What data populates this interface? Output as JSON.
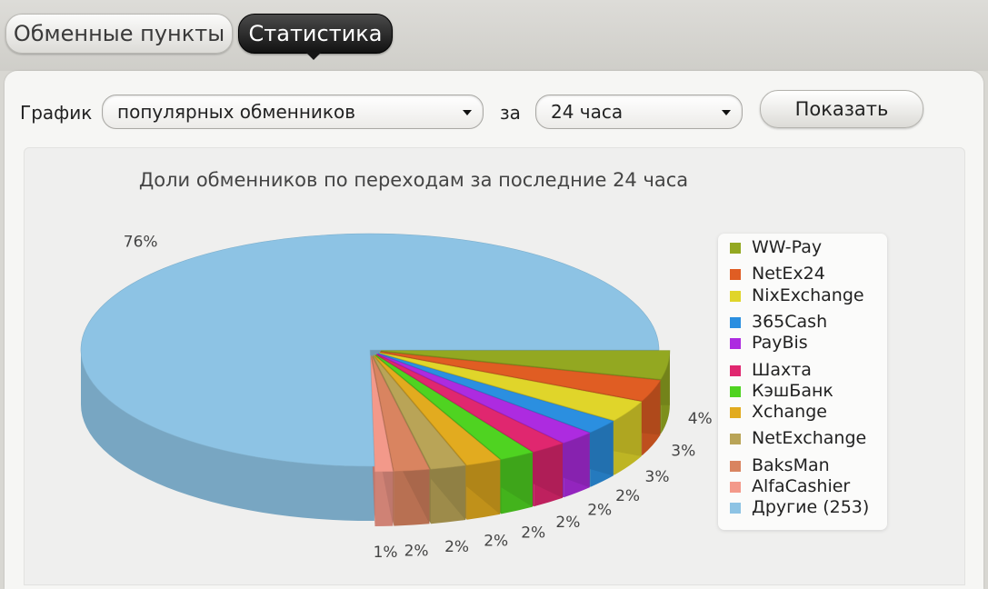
{
  "tabs": [
    {
      "label": "Обменные пункты",
      "active": false
    },
    {
      "label": "Статистика",
      "active": true
    }
  ],
  "controls": {
    "graph_label": "График",
    "graph_select_value": "популярных обменников",
    "period_label": "за",
    "period_select_value": "24 часа",
    "show_button": "Показать"
  },
  "chart_data": {
    "type": "pie",
    "title": "Доли обменников по переходам за последние 24 часа",
    "legend_position": "right",
    "slices": [
      {
        "name": "WW-Pay",
        "value": 4,
        "label": "4%",
        "color": "#93a821"
      },
      {
        "name": "NetEx24",
        "value": 3,
        "label": "3%",
        "color": "#e05d23"
      },
      {
        "name": "NixExchange",
        "value": 3,
        "label": "3%",
        "color": "#e0d52a"
      },
      {
        "name": "365Cash",
        "value": 2,
        "label": "2%",
        "color": "#2b8fe0"
      },
      {
        "name": "PayBis",
        "value": 2,
        "label": "2%",
        "color": "#ad2be0"
      },
      {
        "name": "Шахта",
        "value": 2,
        "label": "2%",
        "color": "#e0276f"
      },
      {
        "name": "КэшБанк",
        "value": 2,
        "label": "2%",
        "color": "#4fd321"
      },
      {
        "name": "Xchange",
        "value": 2,
        "label": "2%",
        "color": "#e2ab1f"
      },
      {
        "name": "NetExchange",
        "value": 2,
        "label": "2%",
        "color": "#b9a457"
      },
      {
        "name": "BaksMan",
        "value": 2,
        "label": "2%",
        "color": "#d98460"
      },
      {
        "name": "AlfaCashier",
        "value": 1,
        "label": "1%",
        "color": "#f3998a"
      },
      {
        "name": "Другие (253)",
        "value": 76,
        "label": "76%",
        "color": "#8dc3e4"
      }
    ]
  }
}
